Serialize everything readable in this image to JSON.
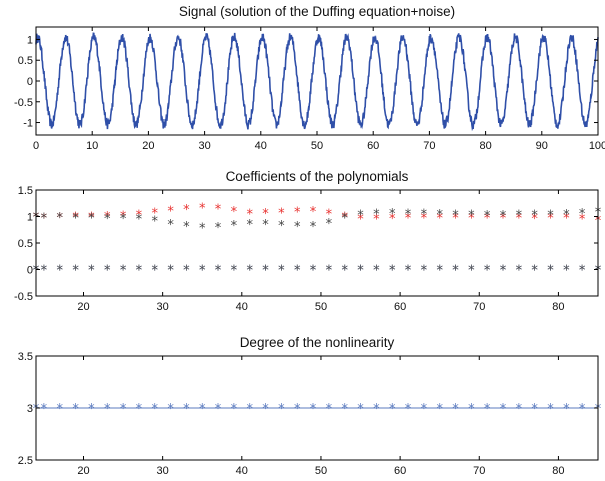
{
  "chart_data": [
    {
      "type": "line",
      "title": "Signal (solution of the Duffing equation+noise)",
      "xlabel": "",
      "ylabel": "",
      "xlim": [
        0,
        100
      ],
      "ylim": [
        -1.3,
        1.3
      ],
      "xticks": [
        0,
        10,
        20,
        30,
        40,
        50,
        60,
        70,
        80,
        90,
        100
      ],
      "xtick_labels": [
        "0",
        "10",
        "20",
        "30",
        "40",
        "50",
        "60",
        "70",
        "80",
        "90",
        "100"
      ],
      "yticks": [
        -1,
        -0.5,
        0,
        0.5,
        1
      ],
      "ytick_labels": [
        "-1",
        "-0.5",
        "0",
        "0.5",
        "1"
      ],
      "series": [
        {
          "color": "#2f4fa8",
          "amplitude": 1.05,
          "period": 5.0,
          "phase": 1.2,
          "noise_amplitude": 0.12,
          "x_range": [
            0,
            100
          ]
        }
      ]
    },
    {
      "type": "scatter",
      "title": "Coefficients of the polynomials",
      "xlabel": "",
      "ylabel": "",
      "xlim": [
        14,
        85
      ],
      "ylim": [
        -0.5,
        1.5
      ],
      "xticks": [
        20,
        30,
        40,
        50,
        60,
        70,
        80
      ],
      "xtick_labels": [
        "20",
        "30",
        "40",
        "50",
        "60",
        "70",
        "80"
      ],
      "yticks": [
        -0.5,
        0,
        0.5,
        1,
        1.5
      ],
      "ytick_labels": [
        "-0.5",
        "0",
        "0.5",
        "1",
        "1.5"
      ],
      "x": [
        14,
        15,
        17,
        19,
        21,
        23,
        25,
        27,
        29,
        31,
        33,
        35,
        37,
        39,
        41,
        43,
        45,
        47,
        49,
        51,
        53,
        55,
        57,
        59,
        61,
        63,
        65,
        67,
        69,
        71,
        73,
        75,
        77,
        79,
        81,
        83,
        85
      ],
      "series": [
        {
          "color": "#e8312f",
          "marker": "*",
          "values": [
            1.0,
            0.98,
            0.99,
            1.0,
            1.0,
            1.01,
            1.02,
            1.04,
            1.08,
            1.11,
            1.14,
            1.17,
            1.15,
            1.1,
            1.06,
            1.07,
            1.08,
            1.09,
            1.1,
            1.06,
            1.0,
            0.96,
            0.96,
            0.97,
            0.98,
            0.98,
            0.98,
            0.98,
            0.98,
            0.98,
            0.98,
            0.98,
            0.97,
            0.98,
            0.98,
            0.96,
            0.93
          ]
        },
        {
          "color": "#444444",
          "marker": "*",
          "values": [
            1.0,
            0.98,
            0.99,
            0.98,
            0.98,
            0.97,
            0.97,
            0.96,
            0.92,
            0.86,
            0.82,
            0.79,
            0.8,
            0.84,
            0.86,
            0.86,
            0.84,
            0.82,
            0.82,
            0.88,
            0.98,
            1.04,
            1.06,
            1.07,
            1.06,
            1.06,
            1.05,
            1.04,
            1.04,
            1.03,
            1.03,
            1.04,
            1.04,
            1.04,
            1.05,
            1.07,
            1.09
          ]
        },
        {
          "color": "#3a4f8f",
          "marker": "*",
          "values": [
            0,
            0,
            0,
            0,
            0,
            0,
            0,
            0,
            0,
            0,
            0,
            0,
            0,
            0,
            0,
            0,
            0,
            0,
            0,
            0,
            0,
            0,
            0,
            0,
            0,
            0,
            0,
            0,
            0,
            0,
            0,
            0,
            0,
            0,
            0,
            0,
            0
          ]
        },
        {
          "color": "#555555",
          "marker": "*",
          "values": [
            0,
            0,
            0,
            0,
            0,
            0,
            0,
            0,
            0,
            0,
            0,
            0,
            0,
            0,
            0,
            0,
            0,
            0,
            0,
            0,
            0,
            0,
            0,
            0,
            0,
            0,
            0,
            0,
            0,
            0,
            0,
            0,
            0,
            0,
            0,
            0,
            0
          ]
        }
      ]
    },
    {
      "type": "scatter",
      "title": "Degree of the nonlinearity",
      "xlabel": "",
      "ylabel": "",
      "xlim": [
        14,
        85
      ],
      "ylim": [
        2.5,
        3.5
      ],
      "xticks": [
        20,
        30,
        40,
        50,
        60,
        70,
        80
      ],
      "xtick_labels": [
        "20",
        "30",
        "40",
        "50",
        "60",
        "70",
        "80"
      ],
      "yticks": [
        2.5,
        3,
        3.5
      ],
      "ytick_labels": [
        "2.5",
        "3",
        "3.5"
      ],
      "x": [
        14,
        15,
        17,
        19,
        21,
        23,
        25,
        27,
        29,
        31,
        33,
        35,
        37,
        39,
        41,
        43,
        45,
        47,
        49,
        51,
        53,
        55,
        57,
        59,
        61,
        63,
        65,
        67,
        69,
        71,
        73,
        75,
        77,
        79,
        81,
        83,
        85
      ],
      "series": [
        {
          "color": "#5b7bbf",
          "marker": "*",
          "values": [
            3,
            3,
            3,
            3,
            3,
            3,
            3,
            3,
            3,
            3,
            3,
            3,
            3,
            3,
            3,
            3,
            3,
            3,
            3,
            3,
            3,
            3,
            3,
            3,
            3,
            3,
            3,
            3,
            3,
            3,
            3,
            3,
            3,
            3,
            3,
            3,
            3
          ]
        }
      ]
    }
  ]
}
